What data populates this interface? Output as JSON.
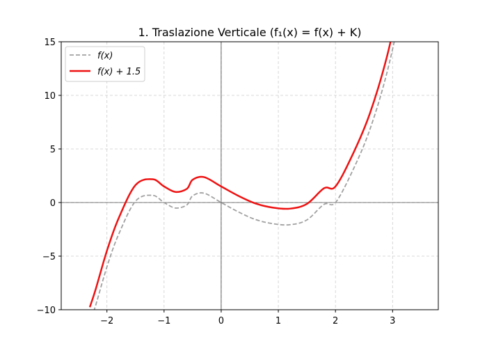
{
  "chart_data": {
    "type": "line",
    "title": "1. Traslazione Verticale (f₁(x) = f(x) + K)",
    "xlabel": "",
    "ylabel": "",
    "xlim": [
      -2.8,
      3.8
    ],
    "ylim": [
      -10,
      15
    ],
    "xticks": [
      -2,
      -1,
      0,
      1,
      2,
      3
    ],
    "yticks": [
      -10,
      -5,
      0,
      5,
      10,
      15
    ],
    "xtick_labels": [
      "−2",
      "−1",
      "0",
      "1",
      "2",
      "3"
    ],
    "ytick_labels": [
      "−10",
      "−5",
      "0",
      "5",
      "10",
      "15"
    ],
    "grid": true,
    "legend_position": "top-left",
    "series": [
      {
        "name": "f(x)",
        "color": "#a0a0a0",
        "style": "dashed",
        "x": [
          -2.3,
          -2.2,
          -2.0,
          -1.8,
          -1.5,
          -1.2,
          -1.0,
          -0.8,
          -0.6,
          -0.5,
          -0.3,
          0.0,
          0.3,
          0.6,
          0.9,
          1.2,
          1.5,
          1.8,
          2.0,
          2.3,
          2.6,
          2.9,
          3.2
        ],
        "y": [
          -11.267,
          -9.648,
          -6.0,
          -3.032,
          0.125,
          0.672,
          0.0,
          -0.512,
          -0.216,
          0.625,
          0.873,
          0.0,
          -0.873,
          -1.584,
          -1.971,
          -2.072,
          -1.625,
          -0.168,
          0.0,
          2.967,
          6.776,
          12.089,
          19.168
        ]
      },
      {
        "name": "f(x) + 1.5",
        "color": "#ee1111",
        "style": "solid",
        "x": [
          -2.3,
          -2.2,
          -2.0,
          -1.8,
          -1.5,
          -1.2,
          -1.0,
          -0.8,
          -0.6,
          -0.5,
          -0.3,
          0.0,
          0.3,
          0.6,
          0.9,
          1.2,
          1.5,
          1.8,
          2.0,
          2.3,
          2.6,
          2.9,
          3.2
        ],
        "y": [
          -9.767,
          -8.148,
          -4.5,
          -1.532,
          1.625,
          2.172,
          1.5,
          0.988,
          1.284,
          2.125,
          2.373,
          1.5,
          0.627,
          -0.084,
          -0.471,
          -0.572,
          -0.125,
          1.332,
          1.5,
          4.467,
          8.276,
          13.589,
          20.668
        ]
      }
    ]
  }
}
